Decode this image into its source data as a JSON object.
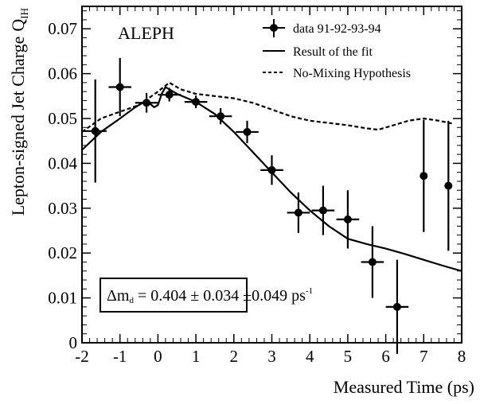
{
  "chart_data": {
    "type": "scatter",
    "experiment_label": "ALEPH",
    "xlabel": "Measured Time (ps)",
    "ylabel": "Lepton-signed Jet Charge",
    "ylabel_symbol": "Q",
    "ylabel_subscript": "IH",
    "xlim": [
      -2,
      8
    ],
    "ylim": [
      0,
      0.075
    ],
    "x_ticks": [
      -2,
      -1,
      0,
      1,
      2,
      3,
      4,
      5,
      6,
      7,
      8
    ],
    "y_ticks": [
      0,
      0.01,
      0.02,
      0.03,
      0.04,
      0.05,
      0.06,
      0.07
    ],
    "y_tick_labels": [
      "0",
      "0.01",
      "0.02",
      "0.03",
      "0.04",
      "0.05",
      "0.06",
      "0.07"
    ],
    "legend": {
      "position": "top-right",
      "entries": [
        "data  91-92-93-94",
        "Result of the fit",
        "No-Mixing Hypothesis"
      ]
    },
    "fit_result": {
      "delta": "Δ",
      "m": "m",
      "sub": "d",
      "value": " = 0.404 ± 0.034 ±0.049 ps",
      "sup": "-1"
    },
    "series": [
      {
        "name": "data  91-92-93-94",
        "style": "points-with-errors",
        "x": [
          -1.65,
          -1.0,
          -0.3,
          0.3,
          1.0,
          1.65,
          2.35,
          3.0,
          3.7,
          4.35,
          5.0,
          5.65,
          6.3,
          7.0,
          7.65
        ],
        "x_err": [
          0.3,
          0.3,
          0.3,
          0.3,
          0.3,
          0.3,
          0.3,
          0.3,
          0.3,
          0.3,
          0.3,
          0.3,
          0.3,
          0.0,
          0.0
        ],
        "y": [
          0.0472,
          0.057,
          0.0535,
          0.0553,
          0.0537,
          0.0505,
          0.047,
          0.0385,
          0.029,
          0.0295,
          0.0275,
          0.018,
          0.008,
          0.0372,
          0.035
        ],
        "y_err": [
          0.0115,
          0.0065,
          0.0022,
          0.0015,
          0.0014,
          0.0018,
          0.0025,
          0.0033,
          0.0045,
          0.0055,
          0.0065,
          0.008,
          0.0105,
          0.0125,
          0.0145
        ]
      },
      {
        "name": "Result of the fit",
        "style": "solid",
        "x": [
          -2.0,
          -1.5,
          -1.0,
          -0.6,
          -0.3,
          -0.1,
          0.0,
          0.1,
          0.2,
          0.3,
          0.5,
          1.0,
          1.5,
          2.0,
          2.5,
          3.0,
          3.5,
          4.0,
          4.5,
          5.0,
          5.5,
          6.0,
          6.5,
          7.0,
          7.5,
          8.0
        ],
        "y": [
          0.043,
          0.047,
          0.05,
          0.0525,
          0.054,
          0.0525,
          0.053,
          0.0555,
          0.057,
          0.0565,
          0.0555,
          0.0537,
          0.051,
          0.047,
          0.0425,
          0.038,
          0.0335,
          0.0295,
          0.026,
          0.0232,
          0.022,
          0.021,
          0.0198,
          0.0185,
          0.0172,
          0.016
        ]
      },
      {
        "name": "No-Mixing Hypothesis",
        "style": "dashed",
        "x": [
          -2.0,
          -1.5,
          -1.0,
          -0.5,
          0.0,
          0.3,
          0.6,
          1.0,
          1.5,
          2.0,
          2.5,
          3.0,
          3.5,
          4.0,
          4.5,
          5.0,
          5.5,
          5.8,
          6.2,
          6.6,
          7.0,
          7.4,
          7.8
        ],
        "y": [
          0.047,
          0.05,
          0.0515,
          0.053,
          0.056,
          0.058,
          0.0565,
          0.0555,
          0.055,
          0.0545,
          0.0535,
          0.052,
          0.0505,
          0.0495,
          0.049,
          0.0485,
          0.0478,
          0.0475,
          0.0485,
          0.0495,
          0.05,
          0.0495,
          0.0488
        ]
      }
    ]
  }
}
